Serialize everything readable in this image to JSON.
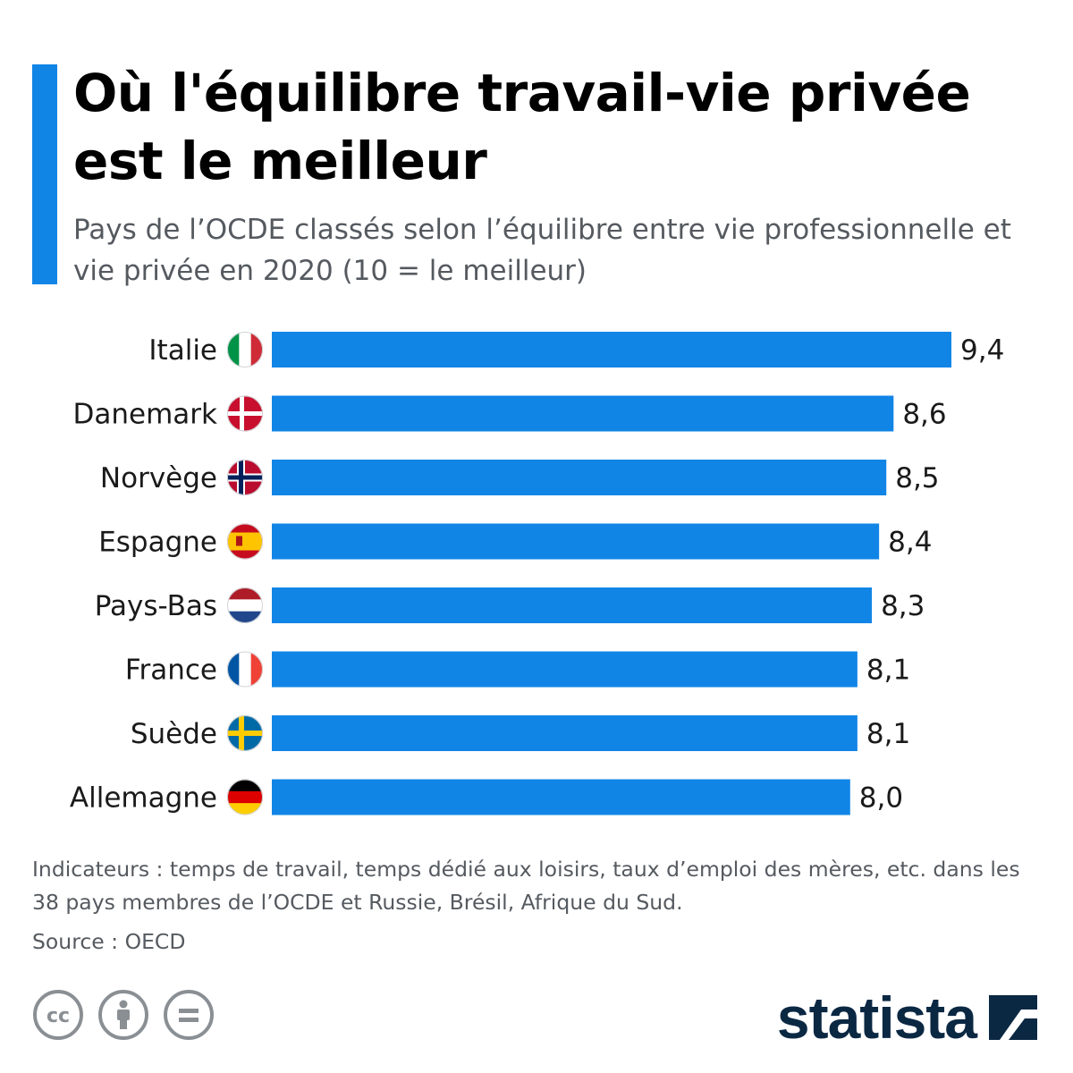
{
  "header": {
    "title": "Où l'équilibre travail-vie privée est le meilleur",
    "subtitle": "Pays de l’OCDE classés selon l’équilibre entre vie professionnelle et vie privée en 2020 (10 = le meilleur)"
  },
  "chart_data": {
    "type": "bar",
    "orientation": "horizontal",
    "categories": [
      "Italie",
      "Danemark",
      "Norvège",
      "Espagne",
      "Pays-Bas",
      "France",
      "Suède",
      "Allemagne"
    ],
    "values": [
      9.4,
      8.6,
      8.5,
      8.4,
      8.3,
      8.1,
      8.1,
      8.0
    ],
    "value_labels": [
      "9,4",
      "8,6",
      "8,5",
      "8,4",
      "8,3",
      "8,1",
      "8,1",
      "8,0"
    ],
    "flags": [
      "italy-flag-icon",
      "denmark-flag-icon",
      "norway-flag-icon",
      "spain-flag-icon",
      "netherlands-flag-icon",
      "france-flag-icon",
      "sweden-flag-icon",
      "germany-flag-icon"
    ],
    "title": "Où l'équilibre travail-vie privée est le meilleur",
    "xlabel": "",
    "ylabel": "",
    "xlim": [
      0,
      9.4
    ],
    "grid": false,
    "legend": "none",
    "bar_color": "#1185e6"
  },
  "footer": {
    "note": "Indicateurs : temps de travail, temps dédié aux loisirs, taux d’emploi des mères, etc. dans les 38 pays membres de l’OCDE et Russie, Brésil, Afrique du Sud.",
    "source": "Source : OECD",
    "license_icons": [
      "creative-commons-icon",
      "attribution-icon",
      "no-derivatives-icon"
    ],
    "brand": "statista"
  },
  "colors": {
    "accent": "#1185e6",
    "title": "#000000",
    "muted_text": "#555a60",
    "brand": "#0b2843",
    "license_icon": "#8a8f94"
  }
}
